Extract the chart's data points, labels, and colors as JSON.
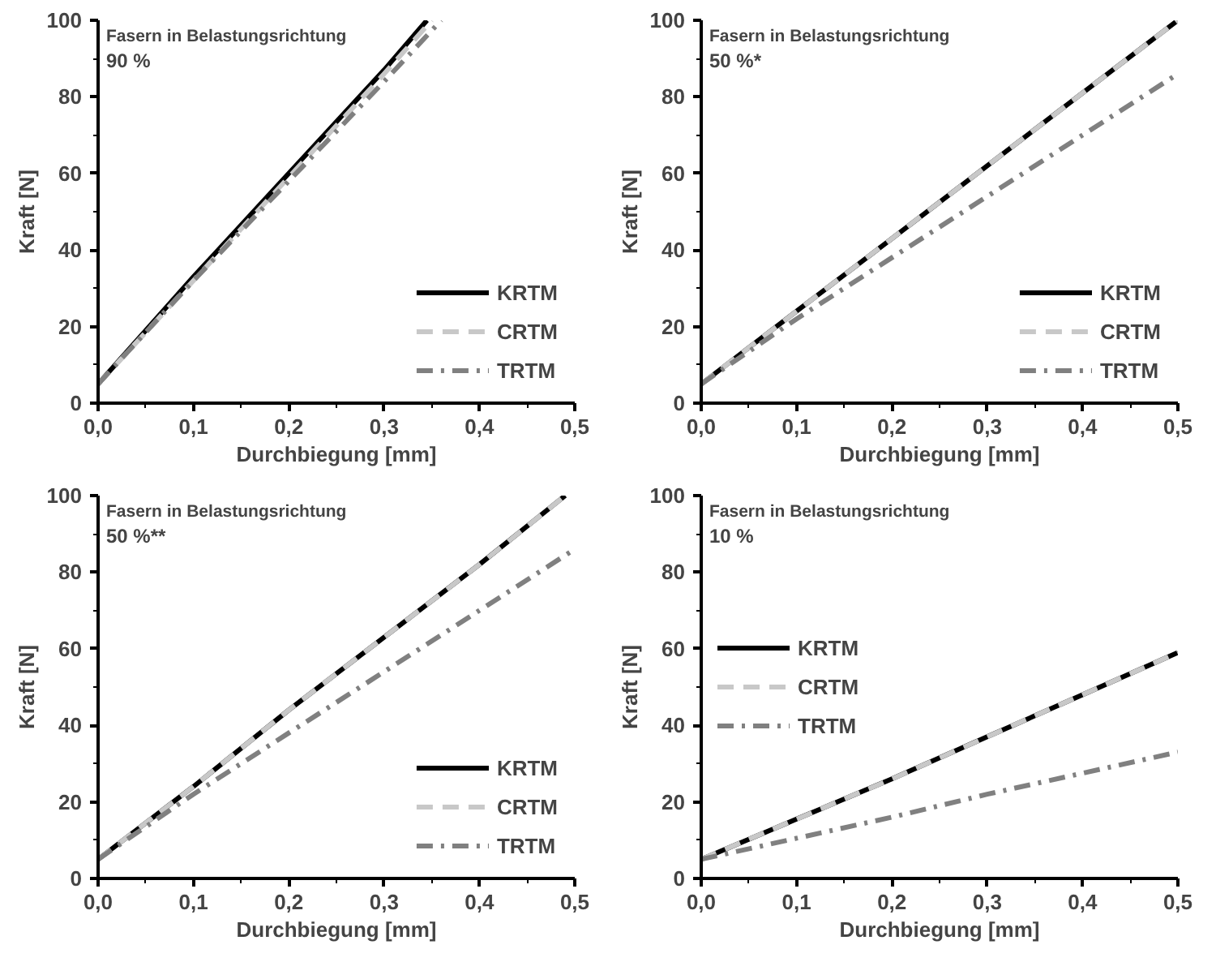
{
  "chart_data": [
    {
      "type": "line",
      "title": "Fasern in Belastungsrichtung",
      "subtitle": "90 %",
      "xlabel": "Durchbiegung [mm]",
      "ylabel": "Kraft [N]",
      "xlim": [
        0,
        0.5
      ],
      "xticks": [
        {
          "value": 0,
          "label": "0,0"
        },
        {
          "value": 0.1,
          "label": "0,1"
        },
        {
          "value": 0.2,
          "label": "0,2"
        },
        {
          "value": 0.3,
          "label": "0,3"
        },
        {
          "value": 0.4,
          "label": "0,4"
        },
        {
          "value": 0.5,
          "label": "0,5"
        }
      ],
      "ylim": [
        0,
        100
      ],
      "yticks": [
        0,
        20,
        40,
        60,
        80,
        100
      ],
      "grid": false,
      "legend": "bottom right",
      "series": [
        {
          "name": "KRTM",
          "color": "#000000",
          "line_style": "solid",
          "x": [
            0,
            0.1,
            0.2,
            0.3,
            0.345
          ],
          "values": [
            5,
            33,
            60,
            87,
            100
          ]
        },
        {
          "name": "CRTM",
          "color": "#c8c8c8",
          "line_style": "dashed",
          "x": [
            0,
            0.1,
            0.2,
            0.3,
            0.35
          ],
          "values": [
            5,
            32,
            59,
            86,
            100
          ]
        },
        {
          "name": "TRTM",
          "color": "#808080",
          "line_style": "dashdot",
          "x": [
            0,
            0.1,
            0.2,
            0.3,
            0.36
          ],
          "values": [
            5,
            32,
            58,
            84,
            100
          ]
        }
      ]
    },
    {
      "type": "line",
      "title": "Fasern in Belastungsrichtung",
      "subtitle": "50 %*",
      "xlabel": "Durchbiegung [mm]",
      "ylabel": "Kraft [N]",
      "xlim": [
        0,
        0.5
      ],
      "xticks": [
        {
          "value": 0,
          "label": "0,0"
        },
        {
          "value": 0.1,
          "label": "0,1"
        },
        {
          "value": 0.2,
          "label": "0,2"
        },
        {
          "value": 0.3,
          "label": "0,3"
        },
        {
          "value": 0.4,
          "label": "0,4"
        },
        {
          "value": 0.5,
          "label": "0,5"
        }
      ],
      "ylim": [
        0,
        100
      ],
      "yticks": [
        0,
        20,
        40,
        60,
        80,
        100
      ],
      "grid": false,
      "legend": "bottom right",
      "series": [
        {
          "name": "KRTM",
          "color": "#000000",
          "line_style": "solid",
          "x": [
            0,
            0.1,
            0.2,
            0.3,
            0.4,
            0.5
          ],
          "values": [
            5,
            24,
            43,
            62,
            81,
            100
          ]
        },
        {
          "name": "CRTM",
          "color": "#c8c8c8",
          "line_style": "dashed",
          "x": [
            0,
            0.1,
            0.2,
            0.3,
            0.4,
            0.5
          ],
          "values": [
            5,
            24,
            43,
            62,
            81,
            100
          ]
        },
        {
          "name": "TRTM",
          "color": "#808080",
          "line_style": "dashdot",
          "x": [
            0,
            0.1,
            0.2,
            0.3,
            0.4,
            0.5
          ],
          "values": [
            5,
            22,
            38,
            54,
            70,
            86
          ]
        }
      ]
    },
    {
      "type": "line",
      "title": "Fasern in Belastungsrichtung",
      "subtitle": "50 %**",
      "xlabel": "Durchbiegung [mm]",
      "ylabel": "Kraft [N]",
      "xlim": [
        0,
        0.5
      ],
      "xticks": [
        {
          "value": 0,
          "label": "0,0"
        },
        {
          "value": 0.1,
          "label": "0,1"
        },
        {
          "value": 0.2,
          "label": "0,2"
        },
        {
          "value": 0.3,
          "label": "0,3"
        },
        {
          "value": 0.4,
          "label": "0,4"
        },
        {
          "value": 0.5,
          "label": "0,5"
        }
      ],
      "ylim": [
        0,
        100
      ],
      "yticks": [
        0,
        20,
        40,
        60,
        80,
        100
      ],
      "grid": false,
      "legend": "bottom right",
      "series": [
        {
          "name": "KRTM",
          "color": "#000000",
          "line_style": "solid",
          "x": [
            0,
            0.1,
            0.2,
            0.3,
            0.4,
            0.49
          ],
          "values": [
            5,
            24,
            44,
            63,
            82,
            100
          ]
        },
        {
          "name": "CRTM",
          "color": "#c8c8c8",
          "line_style": "dashed",
          "x": [
            0,
            0.1,
            0.2,
            0.3,
            0.4,
            0.49
          ],
          "values": [
            5,
            24,
            44,
            63,
            82,
            100
          ]
        },
        {
          "name": "TRTM",
          "color": "#808080",
          "line_style": "dashdot",
          "x": [
            0,
            0.1,
            0.2,
            0.3,
            0.4,
            0.5
          ],
          "values": [
            5,
            22,
            38,
            54,
            70,
            86
          ]
        }
      ]
    },
    {
      "type": "line",
      "title": "Fasern in Belastungsrichtung",
      "subtitle": "10 %",
      "xlabel": "Durchbiegung [mm]",
      "ylabel": "Kraft [N]",
      "xlim": [
        0,
        0.5
      ],
      "xticks": [
        {
          "value": 0,
          "label": "0,0"
        },
        {
          "value": 0.1,
          "label": "0,1"
        },
        {
          "value": 0.2,
          "label": "0,2"
        },
        {
          "value": 0.3,
          "label": "0,3"
        },
        {
          "value": 0.4,
          "label": "0,4"
        },
        {
          "value": 0.5,
          "label": "0,5"
        }
      ],
      "ylim": [
        0,
        100
      ],
      "yticks": [
        0,
        20,
        40,
        60,
        80,
        100
      ],
      "grid": false,
      "legend": "left",
      "series": [
        {
          "name": "KRTM",
          "color": "#000000",
          "line_style": "solid",
          "x": [
            0,
            0.1,
            0.2,
            0.3,
            0.4,
            0.5
          ],
          "values": [
            5,
            15.5,
            26,
            37,
            48,
            59
          ]
        },
        {
          "name": "CRTM",
          "color": "#c8c8c8",
          "line_style": "dashed",
          "x": [
            0,
            0.1,
            0.2,
            0.3,
            0.4,
            0.5
          ],
          "values": [
            5,
            15.5,
            26,
            37,
            48,
            59
          ]
        },
        {
          "name": "TRTM",
          "color": "#808080",
          "line_style": "dashdot",
          "x": [
            0,
            0.1,
            0.2,
            0.3,
            0.4,
            0.5
          ],
          "values": [
            5,
            10.5,
            16,
            22,
            27.5,
            33
          ]
        }
      ]
    }
  ]
}
